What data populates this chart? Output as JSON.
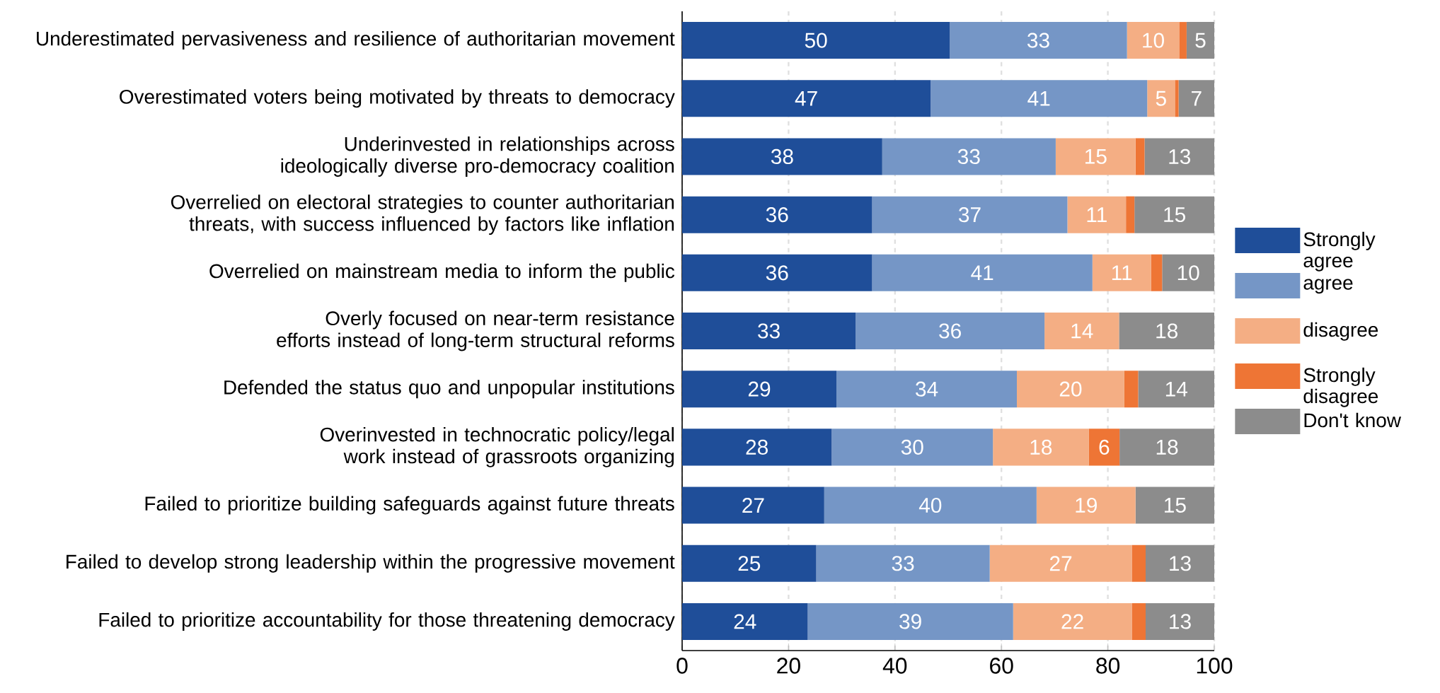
{
  "chart_data": {
    "type": "bar",
    "orientation": "horizontal",
    "stacked": true,
    "categories": [
      "Underestimated pervasiveness and resilience of authoritarian movement",
      "Overestimated voters being motivated by threats to democracy",
      "Underinvested in relationships across ideologically diverse pro-democracy coalition",
      "Overrelied on electoral strategies to counter authoritarian threats, with success influenced by factors like inflation",
      "Overrelied on mainstream media to inform the public",
      "Overly focused on near-term resistance efforts instead of long-term structural reforms",
      "Defended the status quo and unpopular institutions",
      "Overinvested in technocratic policy/legal work instead of grassroots organizing",
      "Failed to prioritize building safeguards against future threats",
      "Failed to develop strong leadership within the progressive movement",
      "Failed to prioritize accountability for those threatening democracy"
    ],
    "series": [
      {
        "name": "Strongly agree",
        "color": "#1f4e99",
        "values": [
          50.3,
          46.7,
          37.6,
          35.7,
          35.7,
          32.6,
          29,
          28.1,
          26.7,
          25.2,
          23.6
        ],
        "value_labels": [
          "50",
          "47",
          "38",
          "36",
          "36",
          "33",
          "29",
          "28",
          "27",
          "25",
          "24"
        ]
      },
      {
        "name": "agree",
        "color": "#7596c6",
        "values": [
          33.3,
          40.7,
          32.6,
          36.7,
          41.4,
          35.5,
          33.9,
          30.3,
          39.9,
          32.6,
          38.6
        ],
        "value_labels": [
          "33",
          "41",
          "33",
          "37",
          "41",
          "36",
          "34",
          "30",
          "40",
          "33",
          "39"
        ]
      },
      {
        "name": "disagree",
        "color": "#f4ae84",
        "values": [
          9.8,
          5.2,
          15,
          11,
          11,
          14,
          20.2,
          18,
          18.6,
          26.7,
          22.3
        ],
        "value_labels": [
          "10",
          "5",
          "15",
          "11",
          "11",
          "14",
          "20",
          "18",
          "19",
          "27",
          "22"
        ]
      },
      {
        "name": "Strongly disagree",
        "color": "#ee7535",
        "values": [
          1.4,
          0.7,
          1.7,
          1.6,
          2.1,
          0,
          2.6,
          5.8,
          0,
          2.6,
          2.6
        ],
        "value_labels": [
          null,
          null,
          null,
          null,
          null,
          null,
          null,
          "6",
          null,
          null,
          null
        ]
      },
      {
        "name": "Don't know",
        "color": "#8c8c8c",
        "values": [
          5.2,
          6.7,
          13.1,
          15,
          9.8,
          17.9,
          14.3,
          17.8,
          14.8,
          12.9,
          12.9
        ],
        "value_labels": [
          "5",
          "7",
          "13",
          "15",
          "10",
          "18",
          "14",
          "18",
          "15",
          "13",
          "13"
        ]
      }
    ],
    "xlim": [
      0,
      100
    ],
    "xticks": [
      0,
      20,
      40,
      60,
      80,
      100
    ],
    "grid": "x",
    "legend": "right"
  }
}
